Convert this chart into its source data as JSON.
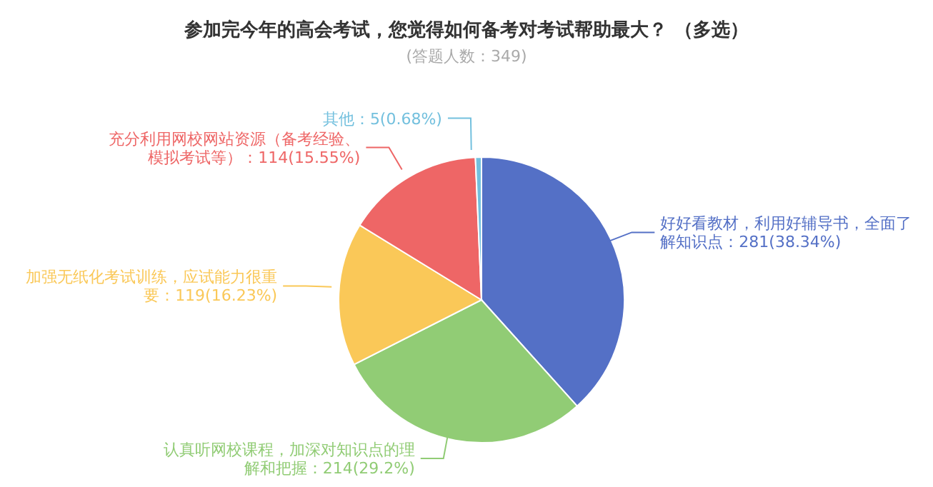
{
  "chart_data": {
    "type": "pie",
    "title": "参加完今年的高会考试，您觉得如何备考对考试帮助最大？ （多选）",
    "subtitle": "(答题人数：349)",
    "categories": [
      "好好看教材，利用好辅导书，全面了解知识点",
      "认真听网校课程，加深对知识点的理解和把握",
      "加强无纸化考试训练，应试能力很重要",
      "充分利用网校网站资源（备考经验、模拟考试等）",
      "其他"
    ],
    "values": [
      281,
      214,
      119,
      114,
      5
    ],
    "value_labels": [
      "：281(38.34%)",
      "：214(29.2%)",
      "：119(16.23%)",
      "：114(15.55%)",
      "：5(0.68%)"
    ],
    "colors": [
      "#5470c6",
      "#91cc75",
      "#fac858",
      "#ee6666",
      "#73c0de"
    ],
    "legend": false
  }
}
